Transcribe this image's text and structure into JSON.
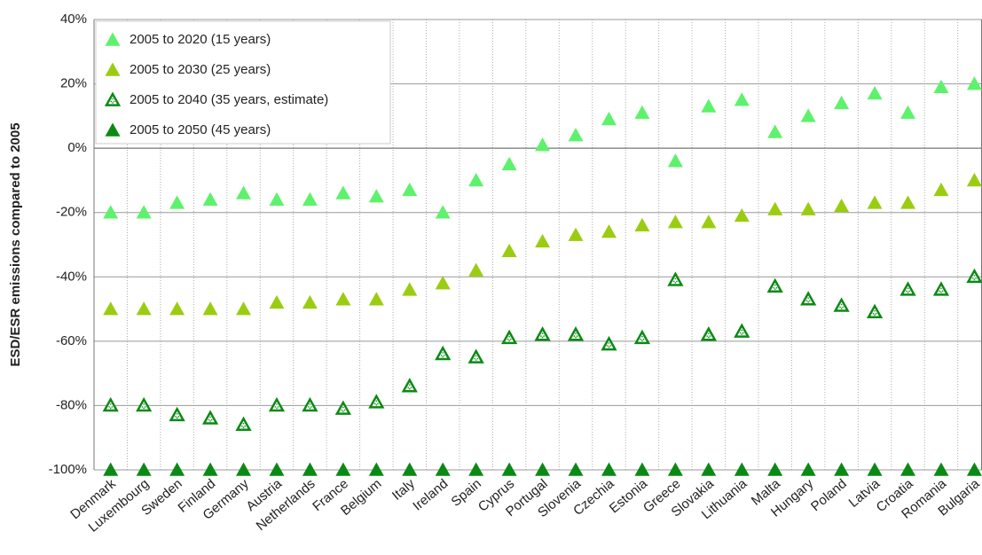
{
  "chart_data": {
    "type": "scatter",
    "y_label": "ESD/ESR emissions compared to 2005",
    "categories": [
      "Denmark",
      "Luxembourg",
      "Sweden",
      "Finland",
      "Germany",
      "Austria",
      "Netherlands",
      "France",
      "Belgium",
      "Italy",
      "Ireland",
      "Spain",
      "Cyprus",
      "Portugal",
      "Slovenia",
      "Czechia",
      "Estonia",
      "Greece",
      "Slovakia",
      "Lithuania",
      "Malta",
      "Hungary",
      "Poland",
      "Latvia",
      "Croatia",
      "Romania",
      "Bulgaria"
    ],
    "series": [
      {
        "name": "2005 to 2020 (15 years)",
        "color": "#5ef26c",
        "style": "filled",
        "values": [
          -20,
          -20,
          -17,
          -16,
          -14,
          -16,
          -16,
          -14,
          -15,
          -13,
          -20,
          -10,
          -5,
          1,
          4,
          9,
          11,
          -4,
          13,
          15,
          5,
          10,
          14,
          17,
          11,
          19,
          20
        ]
      },
      {
        "name": "2005 to 2030 (25 years)",
        "color": "#9acd12",
        "style": "filled",
        "values": [
          -50,
          -50,
          -50,
          -50,
          -50,
          -48,
          -48,
          -47,
          -47,
          -44,
          -42,
          -38,
          -32,
          -29,
          -27,
          -26,
          -24,
          -23,
          -23,
          -21,
          -19,
          -19,
          -18,
          -17,
          -17,
          -13,
          -10
        ]
      },
      {
        "name": "2005 to 2040 (35 years, estimate)",
        "color": "#0a8a14",
        "style": "outline",
        "values": [
          -80,
          -80,
          -83,
          -84,
          -86,
          -80,
          -80,
          -81,
          -79,
          -74,
          -64,
          -65,
          -59,
          -58,
          -58,
          -61,
          -59,
          -41,
          -58,
          -57,
          -43,
          -47,
          -49,
          -51,
          -44,
          -44,
          -40
        ]
      },
      {
        "name": "2005 to 2050 (45 years)",
        "color": "#0a8a14",
        "style": "filled",
        "values": [
          -100,
          -100,
          -100,
          -100,
          -100,
          -100,
          -100,
          -100,
          -100,
          -100,
          -100,
          -100,
          -100,
          -100,
          -100,
          -100,
          -100,
          -100,
          -100,
          -100,
          -100,
          -100,
          -100,
          -100,
          -100,
          -100,
          -100
        ]
      }
    ],
    "ylim": [
      -100,
      40
    ],
    "yticks": [
      {
        "value": -100,
        "label": "-100%"
      },
      {
        "value": -80,
        "label": "-80%"
      },
      {
        "value": -60,
        "label": "-60%"
      },
      {
        "value": -40,
        "label": "-40%"
      },
      {
        "value": -20,
        "label": "-20%"
      },
      {
        "value": 0,
        "label": "0%"
      },
      {
        "value": 20,
        "label": "20%"
      },
      {
        "value": 40,
        "label": "40%"
      }
    ],
    "grid": true,
    "legend": "top-left"
  }
}
